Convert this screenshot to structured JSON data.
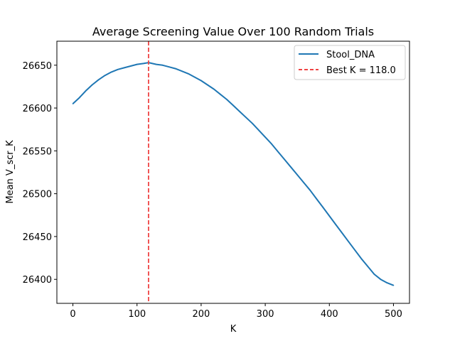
{
  "chart_data": {
    "type": "line",
    "title": "Average Screening Value Over 100 Random Trials",
    "xlabel": "K",
    "ylabel": "Mean V_scr_K",
    "xlim": [
      -25,
      525
    ],
    "ylim": [
      26372,
      26678
    ],
    "xticks": [
      "0",
      "100",
      "200",
      "300",
      "400",
      "500"
    ],
    "yticks": [
      "26400",
      "26450",
      "26500",
      "26550",
      "26600",
      "26650"
    ],
    "grid": false,
    "legend_position": "top-right",
    "series": [
      {
        "name": "Stool_DNA",
        "color": "#1f77b4",
        "x": [
          0,
          10,
          20,
          30,
          40,
          50,
          60,
          70,
          80,
          90,
          100,
          110,
          118,
          130,
          140,
          150,
          160,
          170,
          180,
          190,
          200,
          210,
          220,
          230,
          240,
          250,
          260,
          270,
          280,
          290,
          300,
          310,
          320,
          330,
          340,
          350,
          360,
          370,
          380,
          390,
          400,
          410,
          420,
          430,
          440,
          450,
          460,
          470,
          480,
          490,
          500
        ],
        "y": [
          26605,
          26612,
          26620,
          26627,
          26633,
          26638,
          26642,
          26645,
          26647,
          26649,
          26651,
          26652,
          26653,
          26651,
          26650,
          26648,
          26646,
          26643,
          26640,
          26636,
          26632,
          26627,
          26622,
          26616,
          26610,
          26603,
          26596,
          26589,
          26582,
          26574,
          26566,
          26558,
          26549,
          26540,
          26531,
          26522,
          26513,
          26504,
          26494,
          26484,
          26474,
          26464,
          26454,
          26444,
          26434,
          26424,
          26415,
          26406,
          26400,
          26396,
          26393
        ]
      }
    ],
    "best_k": {
      "label": "Best K = 118.0",
      "value": 118.0,
      "color": "#ef4444"
    }
  }
}
